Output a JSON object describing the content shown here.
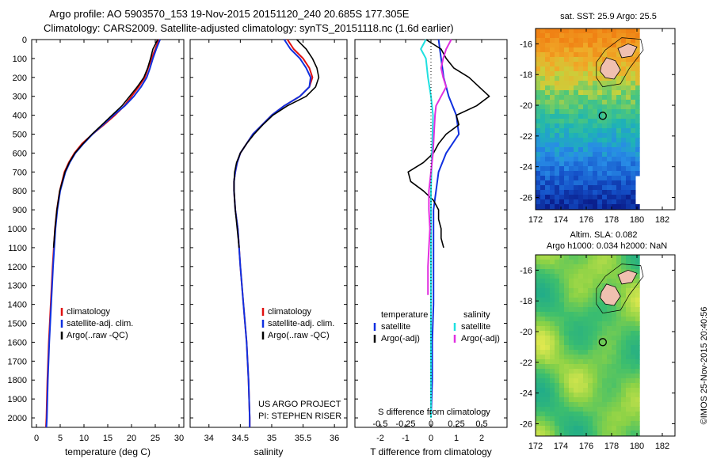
{
  "header": {
    "line1": "Argo profile: AO 5903570_153 19-Nov-2015 20151120_240 20.685S 177.305E",
    "line2": "Climatology: CARS2009. Satellite-adjusted climatology: synTS_20151118.nc (1.6d earlier)"
  },
  "credit": "©IMOS 25-Nov-2015 20:40:56",
  "project": {
    "line1": "US ARGO PROJECT",
    "line2": "PI: STEPHEN RISER"
  },
  "colors": {
    "climatology": "#e01010",
    "satellite": "#1030e0",
    "argo": "#000000",
    "s_satellite": "#20e0e0",
    "s_argo": "#e030e0",
    "land": "#f0c0b0"
  },
  "depth_ticks": [
    "0",
    "100",
    "200",
    "300",
    "400",
    "500",
    "600",
    "700",
    "800",
    "900",
    "1000",
    "1100",
    "1200",
    "1300",
    "1400",
    "1500",
    "1600",
    "1700",
    "1800",
    "1900",
    "2000"
  ],
  "chart_data": [
    {
      "type": "line",
      "xlabel": "temperature (deg C)",
      "ylabel": "",
      "xlim": [
        -1,
        31
      ],
      "ylim": [
        2050,
        0
      ],
      "xticks": [
        "0",
        "5",
        "10",
        "15",
        "20",
        "25",
        "30"
      ],
      "legend": [
        "climatology",
        "satellite-adj. clim.",
        "Argo(..raw -QC)"
      ],
      "series": [
        {
          "name": "climatology",
          "depth": [
            0,
            50,
            100,
            150,
            200,
            250,
            300,
            350,
            400,
            450,
            500,
            550,
            600,
            650,
            700,
            800,
            900,
            1000,
            1200,
            1400,
            1600,
            1800,
            2000,
            2050
          ],
          "values": [
            25.7,
            25,
            24.2,
            23.5,
            22.8,
            21.5,
            20,
            18.5,
            16.5,
            14.2,
            11.8,
            9.6,
            8,
            6.8,
            5.9,
            4.9,
            4.3,
            3.9,
            3.4,
            3.0,
            2.6,
            2.3,
            2.1,
            2.0
          ]
        },
        {
          "name": "satellite-adj. clim.",
          "depth": [
            0,
            50,
            100,
            150,
            200,
            250,
            300,
            350,
            400,
            450,
            500,
            550,
            600,
            650,
            700,
            800,
            900,
            1000,
            1200,
            1400,
            1600,
            1800,
            2000,
            2050
          ],
          "values": [
            26,
            25.2,
            24.5,
            23.9,
            23.2,
            22,
            20.5,
            18.6,
            16.2,
            14,
            11.8,
            9.9,
            8.2,
            7,
            6.1,
            5,
            4.4,
            4,
            3.5,
            3.1,
            2.7,
            2.4,
            2.2,
            2.1
          ]
        },
        {
          "name": "Argo(..raw -QC)",
          "depth": [
            0,
            50,
            100,
            150,
            200,
            250,
            300,
            350,
            400,
            450,
            500,
            550,
            600,
            650,
            700,
            800,
            900,
            1000,
            1100
          ],
          "values": [
            25.5,
            24.5,
            24,
            23.4,
            22.6,
            21.2,
            19.6,
            18,
            15.9,
            13.8,
            11.7,
            9.8,
            8.1,
            6.9,
            6.0,
            4.9,
            4.3,
            3.9,
            3.6
          ]
        }
      ]
    },
    {
      "type": "line",
      "xlabel": "salinity",
      "ylabel": "",
      "xlim": [
        33.7,
        36.2
      ],
      "ylim": [
        2050,
        0
      ],
      "xticks": [
        "34",
        "34.5",
        "35",
        "35.5",
        "36"
      ],
      "legend": [
        "climatology",
        "satellite-adj. clim.",
        "Argo(..raw -QC)"
      ],
      "series": [
        {
          "name": "climatology",
          "depth": [
            0,
            50,
            100,
            150,
            200,
            250,
            300,
            350,
            400,
            450,
            500,
            550,
            600,
            650,
            700,
            750,
            800,
            900,
            1000,
            1200,
            1400,
            1600,
            1800,
            2000,
            2050
          ],
          "values": [
            35.25,
            35.35,
            35.5,
            35.6,
            35.65,
            35.6,
            35.45,
            35.2,
            35,
            34.85,
            34.7,
            34.6,
            34.5,
            34.45,
            34.42,
            34.4,
            34.4,
            34.42,
            34.46,
            34.5,
            34.55,
            34.6,
            34.63,
            34.65,
            34.65
          ]
        },
        {
          "name": "satellite-adj. clim.",
          "depth": [
            0,
            50,
            100,
            150,
            200,
            250,
            300,
            350,
            400,
            450,
            500,
            550,
            600,
            650,
            700,
            750,
            800,
            900,
            1000,
            1200,
            1400,
            1600,
            1800,
            2000,
            2050
          ],
          "values": [
            35.2,
            35.3,
            35.45,
            35.55,
            35.62,
            35.6,
            35.45,
            35.2,
            35,
            34.85,
            34.7,
            34.6,
            34.5,
            34.45,
            34.42,
            34.4,
            34.4,
            34.42,
            34.46,
            34.5,
            34.55,
            34.6,
            34.63,
            34.65,
            34.65
          ]
        },
        {
          "name": "Argo(..raw -QC)",
          "depth": [
            0,
            50,
            100,
            150,
            200,
            250,
            300,
            350,
            400,
            450,
            500,
            550,
            600,
            650,
            700,
            750,
            800,
            900,
            1000,
            1100
          ],
          "values": [
            35.4,
            35.55,
            35.65,
            35.72,
            35.75,
            35.7,
            35.55,
            35.25,
            35.02,
            34.86,
            34.72,
            34.6,
            34.5,
            34.44,
            34.41,
            34.4,
            34.4,
            34.42,
            34.45,
            34.48
          ]
        }
      ]
    },
    {
      "type": "line",
      "xlabel": "T difference from climatology",
      "ylabel": "",
      "xlim": [
        -3,
        3
      ],
      "ylim": [
        2050,
        0
      ],
      "xticks": [
        "-2",
        "-1",
        "0",
        "1",
        "2"
      ],
      "xlabel_top": "S difference from climatology",
      "xticks_top": [
        "-0.5",
        "-0.25",
        "0",
        "0.25",
        "0.5"
      ],
      "legend_headers": [
        "temperature",
        "salinity"
      ],
      "legend": [
        "satellite",
        "Argo(-adj)",
        "satellite",
        "Argo(-adj)"
      ],
      "series": [
        {
          "name": "temperature satellite",
          "depth": [
            0,
            100,
            200,
            300,
            400,
            500,
            600,
            700,
            800,
            900,
            1000,
            1200,
            1400,
            1600,
            1800,
            2000
          ],
          "values": [
            0.3,
            0.4,
            0.5,
            0.7,
            1.0,
            1.1,
            0.6,
            0.3,
            0.2,
            0.1,
            0.1,
            0.1,
            0.1,
            0.05,
            0.05,
            0
          ]
        },
        {
          "name": "temperature Argo(-adj)",
          "depth": [
            0,
            50,
            100,
            150,
            200,
            250,
            300,
            350,
            400,
            450,
            500,
            550,
            600,
            650,
            700,
            750,
            800,
            850,
            900,
            950,
            1000,
            1050,
            1100
          ],
          "values": [
            -0.2,
            0.4,
            0.6,
            0.9,
            1.5,
            1.9,
            2.3,
            1.8,
            1.0,
            1.1,
            0.6,
            0.3,
            0.1,
            -0.3,
            -0.9,
            -0.8,
            -0.3,
            0.1,
            0.3,
            0.3,
            0.4,
            0.4,
            0.5
          ]
        },
        {
          "name": "salinity satellite",
          "depth": [
            0,
            50,
            100,
            200,
            300,
            400,
            600,
            800,
            1000,
            1200,
            1400,
            1600,
            1800,
            2000
          ],
          "values": [
            -0.05,
            -0.1,
            -0.05,
            -0.03,
            0,
            0.02,
            0.01,
            0,
            0,
            0,
            0,
            0,
            0,
            0
          ]
        },
        {
          "name": "salinity Argo(-adj)",
          "depth": [
            0,
            50,
            100,
            150,
            200,
            250,
            300,
            350,
            400,
            500,
            600,
            700,
            800,
            900,
            1000,
            1100,
            1200,
            1300,
            1350
          ],
          "values": [
            0.2,
            0.15,
            0.12,
            0.1,
            0.12,
            0.15,
            0.1,
            0.05,
            0.04,
            0.03,
            0.02,
            0.0,
            -0.02,
            -0.02,
            -0.01,
            -0.02,
            -0.03,
            -0.03,
            -0.03
          ]
        }
      ]
    }
  ],
  "maps": [
    {
      "title": "sat. SST: 25.9 Argo: 25.5",
      "xticks": [
        "172",
        "174",
        "176",
        "178",
        "180",
        "182"
      ],
      "yticks": [
        "-16",
        "-18",
        "-20",
        "-22",
        "-24",
        "-26"
      ],
      "xlim": [
        172,
        183
      ],
      "ylim": [
        -26.8,
        -15
      ],
      "data_xlim": [
        172,
        180.2
      ],
      "float_lon": 177.3,
      "float_lat": -20.685,
      "colorscale": "sst"
    },
    {
      "title_line1": "Altim. SLA: 0.082",
      "title_line2": "Argo h1000: 0.034 h2000: NaN",
      "xticks": [
        "172",
        "174",
        "176",
        "178",
        "180",
        "182"
      ],
      "yticks": [
        "-16",
        "-18",
        "-20",
        "-22",
        "-24",
        "-26"
      ],
      "xlim": [
        172,
        183
      ],
      "ylim": [
        -26.8,
        -15
      ],
      "data_xlim": [
        172,
        180.2
      ],
      "float_lon": 177.3,
      "float_lat": -20.685,
      "colorscale": "sla"
    }
  ]
}
